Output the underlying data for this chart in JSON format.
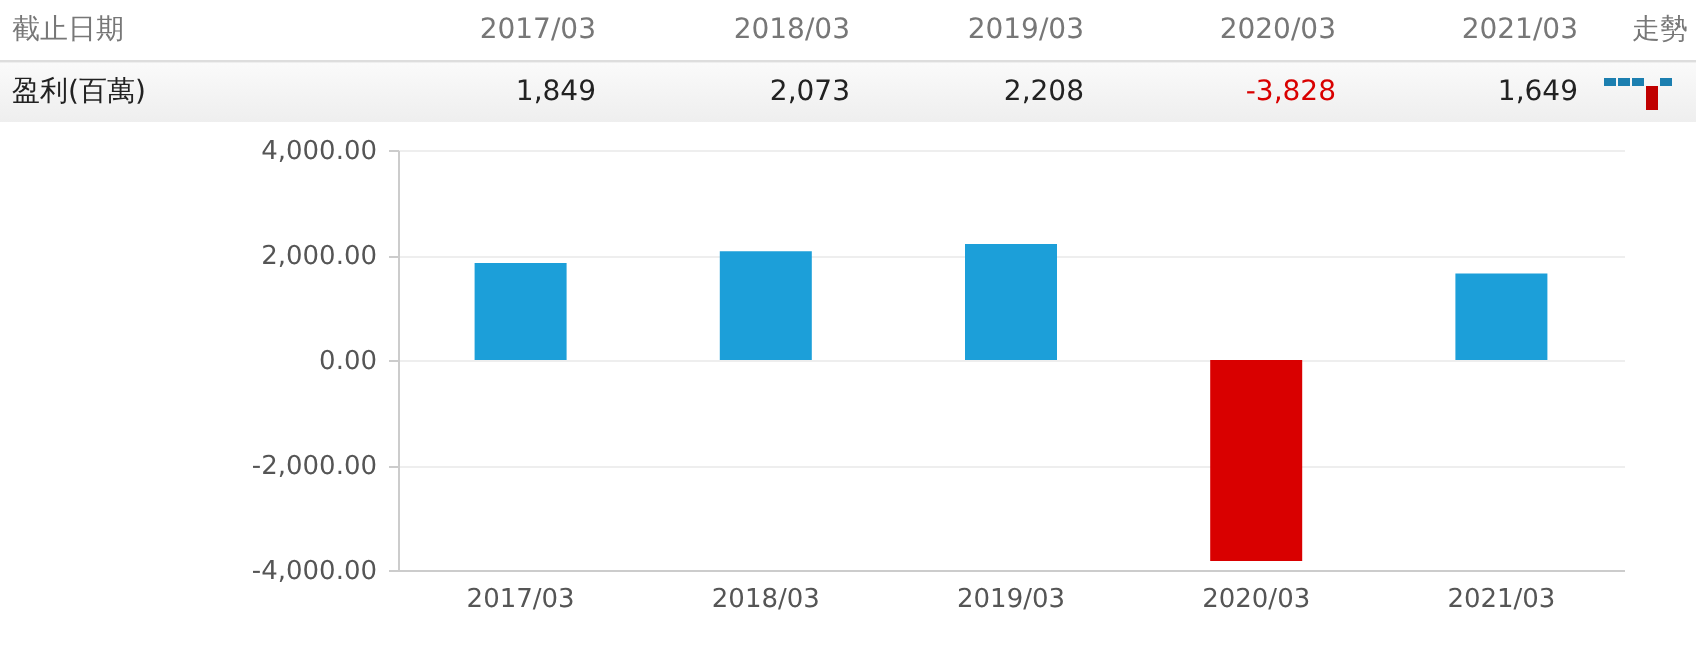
{
  "chart_data": {
    "type": "bar",
    "categories": [
      "2017/03",
      "2018/03",
      "2019/03",
      "2020/03",
      "2021/03"
    ],
    "values": [
      1849,
      2073,
      2208,
      -3828,
      1649
    ],
    "value_labels": [
      "1,849",
      "2,073",
      "2,208",
      "-3,828",
      "1,649"
    ],
    "colors": [
      "#1c9fd9",
      "#1c9fd9",
      "#1c9fd9",
      "#d90000",
      "#1c9fd9"
    ],
    "ylabel": "盈利(百萬)",
    "annotations": [
      "截止日期",
      "走勢"
    ],
    "ylim": [
      -4000,
      4000
    ],
    "yticks": [
      {
        "value": -4000,
        "label": "-4,000.00"
      },
      {
        "value": -2000,
        "label": "-2,000.00"
      },
      {
        "value": 0,
        "label": "0.00"
      },
      {
        "value": 2000,
        "label": "2,000.00"
      },
      {
        "value": 4000,
        "label": "4,000.00"
      }
    ],
    "grid": "y"
  }
}
